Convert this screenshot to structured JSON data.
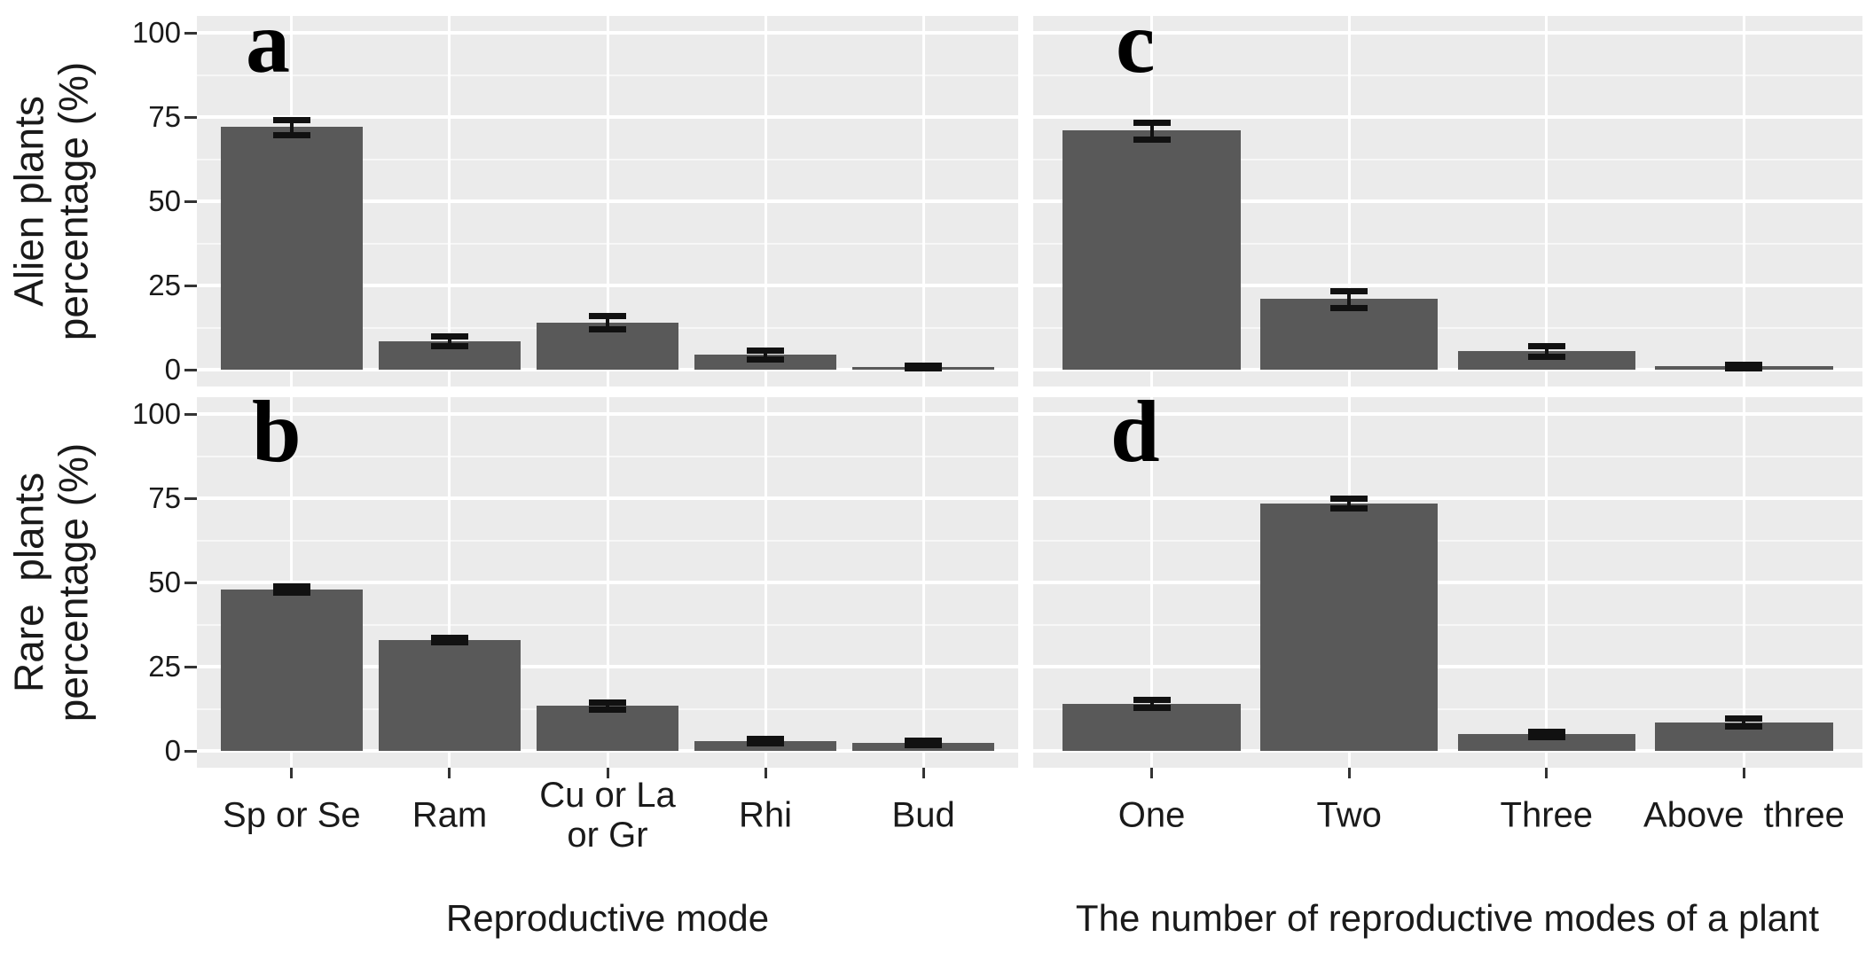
{
  "figure": {
    "kind": "faceted bar chart, 2 rows x 2 columns",
    "colors": {
      "background": "#ffffff",
      "panel_bg": "#ebebeb",
      "bar": "#595959",
      "grid_major": "#ffffff",
      "grid_minor": "#ffffff",
      "error_bar": "#111111",
      "axis_text": "#1a1a1a",
      "tick_mark": "#333333"
    },
    "row_labels": [
      "Alien plants\npercentage (%)",
      "Rare  plants\npercentage (%)"
    ],
    "col_axis_titles": [
      "Reproductive mode",
      "The number of reproductive modes of a plant"
    ],
    "y_axis": {
      "ticks": [
        0,
        25,
        50,
        75,
        100
      ],
      "minor_ticks": [
        12.5,
        37.5,
        62.5,
        87.5
      ],
      "limits": [
        0,
        100
      ]
    }
  },
  "chart_data": [
    {
      "panel": "a",
      "type": "bar",
      "row": 0,
      "col": 0,
      "title": "",
      "xlabel": "Reproductive mode",
      "ylabel": "Alien plants percentage (%)",
      "ylim": [
        0,
        100
      ],
      "grid": true,
      "categories": [
        "Sp or Se",
        "Ram",
        "Cu or La\nor Gr",
        "Rhi",
        "Bud"
      ],
      "values": [
        72,
        8.5,
        14,
        4.5,
        0.8
      ],
      "errors": [
        2.2,
        1.5,
        2,
        1.3,
        0.4
      ]
    },
    {
      "panel": "b",
      "type": "bar",
      "row": 1,
      "col": 0,
      "title": "",
      "xlabel": "Reproductive mode",
      "ylabel": "Rare  plants percentage (%)",
      "ylim": [
        0,
        100
      ],
      "grid": true,
      "categories": [
        "Sp or Se",
        "Ram",
        "Cu or La\nor Gr",
        "Rhi",
        "Bud"
      ],
      "values": [
        48,
        33,
        13.5,
        3,
        2.5
      ],
      "errors": [
        1,
        0.7,
        1,
        0.6,
        0.6
      ]
    },
    {
      "panel": "c",
      "type": "bar",
      "row": 0,
      "col": 1,
      "title": "",
      "xlabel": "The number of reproductive modes of a plant",
      "ylabel": "Alien plants percentage (%)",
      "ylim": [
        0,
        100
      ],
      "grid": true,
      "categories": [
        "One",
        "Two",
        "Three",
        "Above  three"
      ],
      "values": [
        71,
        21,
        5.5,
        1
      ],
      "errors": [
        2.5,
        2.5,
        1.5,
        0.5
      ]
    },
    {
      "panel": "d",
      "type": "bar",
      "row": 1,
      "col": 1,
      "title": "",
      "xlabel": "The number of reproductive modes of a plant",
      "ylabel": "Rare  plants percentage (%)",
      "ylim": [
        0,
        100
      ],
      "grid": true,
      "categories": [
        "One",
        "Two",
        "Three",
        "Above  three"
      ],
      "values": [
        14,
        73.5,
        5,
        8.5
      ],
      "errors": [
        1.2,
        1.5,
        0.8,
        1.2
      ]
    }
  ]
}
